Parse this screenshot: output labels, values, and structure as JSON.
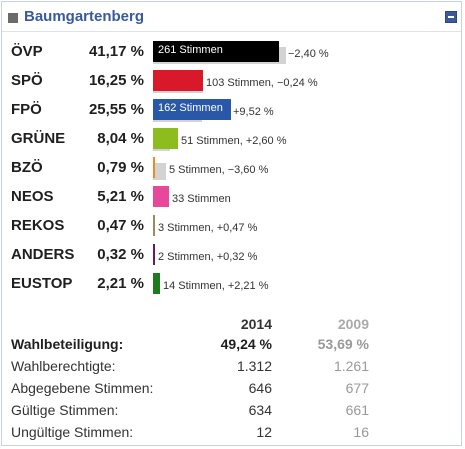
{
  "header": {
    "title": "Baumgartenberg"
  },
  "results": [
    {
      "party": "ÖVP",
      "pct": "41,17 %",
      "value": 41.17,
      "prev": 43.57,
      "votes_label": "261 Stimmen",
      "change": "−2,40 %",
      "color": "#000000",
      "label_inside": true
    },
    {
      "party": "SPÖ",
      "pct": "16,25 %",
      "value": 16.25,
      "prev": 16.49,
      "votes_label": "103 Stimmen,",
      "change": "−0,24 %",
      "color": "#d9192a",
      "label_inside": false
    },
    {
      "party": "FPÖ",
      "pct": "25,55 %",
      "value": 25.55,
      "prev": 16.03,
      "votes_label": "162 Stimmen",
      "change": "+9,52 %",
      "color": "#2a58a8",
      "label_inside": true
    },
    {
      "party": "GRÜNE",
      "pct": "8,04 %",
      "value": 8.04,
      "prev": 5.44,
      "votes_label": "51 Stimmen,",
      "change": "+2,60 %",
      "color": "#8cbc1e",
      "label_inside": false
    },
    {
      "party": "BZÖ",
      "pct": "0,79 %",
      "value": 0.79,
      "prev": 4.39,
      "votes_label": "5 Stimmen,",
      "change": "−3,60 %",
      "color": "#f08a1c",
      "label_inside": false
    },
    {
      "party": "NEOS",
      "pct": "5,21 %",
      "value": 5.21,
      "prev": 0,
      "votes_label": "33 Stimmen",
      "change": "",
      "color": "#e8479a",
      "label_inside": false
    },
    {
      "party": "REKOS",
      "pct": "0,47 %",
      "value": 0.47,
      "prev": 0,
      "votes_label": "3 Stimmen,",
      "change": "+0,47 %",
      "color": "#9b8a5a",
      "label_inside": false
    },
    {
      "party": "ANDERS",
      "pct": "0,32 %",
      "value": 0.32,
      "prev": 0,
      "votes_label": "2 Stimmen,",
      "change": "+0,32 %",
      "color": "#6a1a5a",
      "label_inside": false
    },
    {
      "party": "EUSTOP",
      "pct": "2,21 %",
      "value": 2.21,
      "prev": 0,
      "votes_label": "14 Stimmen,",
      "change": "+2,21 %",
      "color": "#1e7a1e",
      "label_inside": false
    }
  ],
  "stats": {
    "col_2014": "2014",
    "col_2009": "2009",
    "rows": [
      {
        "label": "Wahlbeteiligung:",
        "v2014": "49,24 %",
        "v2009": "53,69 %",
        "bold": true
      },
      {
        "label": "Wahlberechtigte:",
        "v2014": "1.312",
        "v2009": "1.261",
        "bold": false
      },
      {
        "label": "Abgegebene Stimmen:",
        "v2014": "646",
        "v2009": "677",
        "bold": false
      },
      {
        "label": "Gültige Stimmen:",
        "v2014": "634",
        "v2009": "661",
        "bold": false
      },
      {
        "label": "Ungültige Stimmen:",
        "v2014": "12",
        "v2009": "16",
        "bold": false
      }
    ]
  }
}
